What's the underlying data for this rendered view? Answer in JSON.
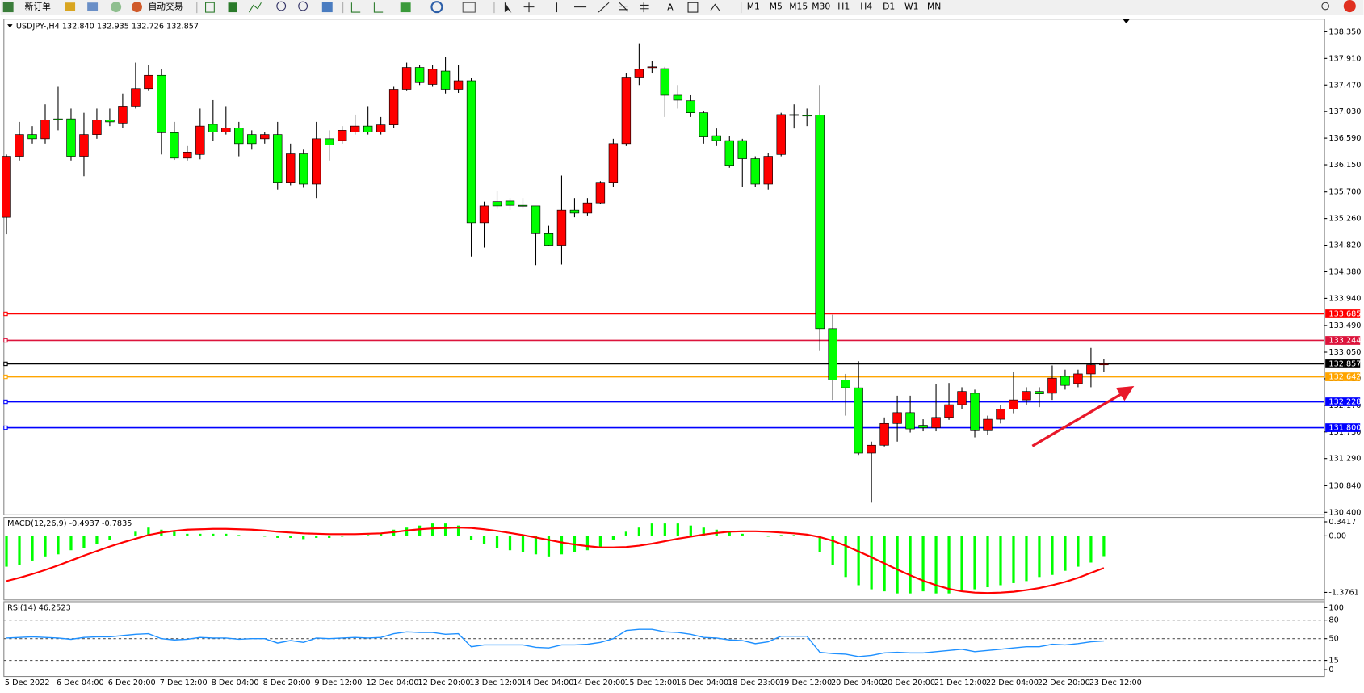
{
  "toolbar": {
    "new_order": "新订单",
    "auto_trading": "自动交易",
    "text_tool": "A",
    "timeframes": [
      "M1",
      "M5",
      "M15",
      "M30",
      "H1",
      "H4",
      "D1",
      "W1",
      "MN"
    ]
  },
  "chart_data": [
    {
      "type": "candlestick",
      "title": "USDJPY-,H4  132.840 132.935 132.726 132.857",
      "categories": [
        "5 Dec 2022",
        null,
        null,
        null,
        "6 Dec 04:00",
        null,
        null,
        null,
        "6 Dec 20:00",
        null,
        null,
        null,
        "7 Dec 12:00",
        null,
        null,
        null,
        "8 Dec 04:00",
        null,
        null,
        null,
        "8 Dec 20:00",
        null,
        null,
        null,
        "9 Dec 12:00",
        null,
        null,
        null,
        "12 Dec 04:00",
        null,
        null,
        null,
        "12 Dec 20:00",
        null,
        null,
        null,
        "13 Dec 12:00",
        null,
        null,
        null,
        "14 Dec 04:00",
        null,
        null,
        null,
        "14 Dec 20:00",
        null,
        null,
        null,
        "15 Dec 12:00",
        null,
        null,
        null,
        "16 Dec 04:00",
        null,
        null,
        null,
        "18 Dec 23:00",
        null,
        null,
        null,
        "19 Dec 12:00",
        null,
        null,
        null,
        "20 Dec 04:00",
        null,
        null,
        null,
        "20 Dec 20:00",
        null,
        null,
        null,
        "21 Dec 12:00",
        null,
        null,
        null,
        "22 Dec 04:00",
        null,
        null,
        null,
        "22 Dec 20:00",
        null,
        null,
        null,
        "23 Dec 12:00",
        null
      ],
      "open": [
        135.28,
        136.29,
        136.65,
        136.58,
        136.91,
        136.91,
        136.29,
        136.65,
        136.89,
        136.84,
        137.12,
        137.41,
        137.63,
        136.68,
        136.26,
        136.32,
        136.82,
        136.69,
        136.76,
        136.65,
        136.58,
        136.65,
        135.86,
        136.33,
        135.83,
        136.58,
        136.55,
        136.69,
        136.79,
        136.69,
        136.81,
        137.4,
        137.76,
        137.48,
        137.7,
        137.4,
        137.54,
        135.19,
        135.54,
        135.55,
        135.48,
        135.47,
        135.01,
        134.82,
        135.4,
        135.35,
        135.52,
        135.86,
        136.5,
        137.6,
        137.77,
        137.74,
        137.3,
        137.21,
        137.01,
        136.63,
        136.55,
        136.55,
        136.25,
        135.83,
        136.32,
        136.98,
        136.97,
        136.97,
        133.44,
        132.59,
        132.46,
        131.38,
        131.51,
        131.87,
        132.05,
        131.84,
        131.8,
        131.97,
        132.18,
        132.37,
        131.75,
        131.94,
        132.11,
        132.26,
        132.4,
        132.37,
        132.65,
        132.53,
        132.69,
        132.84
      ],
      "high": [
        136.32,
        136.86,
        136.79,
        137.15,
        137.44,
        137.08,
        137.01,
        137.08,
        137.08,
        137.33,
        137.84,
        137.8,
        137.73,
        136.86,
        136.46,
        137.08,
        137.22,
        137.12,
        136.86,
        136.72,
        136.69,
        136.86,
        136.5,
        136.4,
        136.86,
        136.72,
        136.79,
        136.98,
        137.12,
        136.94,
        137.44,
        137.84,
        137.8,
        137.8,
        137.94,
        137.8,
        137.58,
        135.54,
        135.71,
        135.6,
        135.6,
        135.47,
        135.14,
        135.97,
        135.6,
        135.6,
        135.88,
        136.58,
        137.66,
        138.16,
        137.87,
        137.77,
        137.47,
        137.3,
        137.04,
        136.75,
        136.62,
        136.58,
        136.29,
        136.35,
        137.01,
        137.15,
        137.08,
        137.47,
        133.67,
        132.69,
        132.9,
        131.57,
        131.97,
        132.33,
        132.33,
        131.94,
        132.52,
        132.54,
        132.47,
        132.43,
        132.0,
        132.18,
        132.72,
        132.47,
        132.47,
        132.83,
        132.76,
        132.76,
        133.12,
        132.935
      ],
      "low": [
        135.0,
        136.22,
        136.5,
        136.5,
        136.72,
        136.22,
        135.96,
        136.58,
        136.79,
        136.76,
        137.08,
        137.37,
        136.32,
        136.23,
        136.22,
        136.24,
        136.55,
        136.65,
        136.29,
        136.4,
        136.5,
        135.74,
        135.81,
        135.77,
        135.6,
        136.22,
        136.5,
        136.65,
        136.65,
        136.65,
        136.76,
        137.37,
        137.47,
        137.44,
        137.33,
        137.34,
        134.63,
        134.78,
        135.42,
        135.4,
        135.42,
        134.49,
        134.81,
        134.5,
        135.28,
        135.31,
        135.5,
        135.78,
        136.46,
        137.47,
        137.66,
        136.94,
        137.08,
        136.94,
        136.5,
        136.46,
        136.1,
        135.78,
        135.78,
        135.74,
        136.29,
        136.75,
        136.79,
        133.08,
        132.26,
        132.0,
        131.35,
        130.56,
        131.49,
        131.57,
        131.72,
        131.74,
        131.74,
        131.93,
        132.11,
        131.64,
        131.68,
        131.87,
        132.04,
        132.18,
        132.14,
        132.26,
        132.43,
        132.47,
        132.47,
        132.726
      ],
      "close": [
        136.29,
        136.65,
        136.58,
        136.89,
        136.9,
        136.29,
        136.65,
        136.89,
        136.86,
        137.12,
        137.41,
        137.63,
        136.68,
        136.26,
        136.36,
        136.79,
        136.69,
        136.76,
        136.5,
        136.5,
        136.65,
        135.86,
        136.33,
        135.83,
        136.58,
        136.48,
        136.72,
        136.79,
        136.69,
        136.81,
        137.4,
        137.76,
        137.51,
        137.73,
        137.4,
        137.54,
        135.19,
        135.47,
        135.47,
        135.48,
        135.47,
        135.01,
        134.82,
        135.4,
        135.35,
        135.52,
        135.86,
        136.5,
        137.6,
        137.73,
        137.77,
        137.3,
        137.22,
        137.01,
        136.61,
        136.55,
        136.14,
        136.25,
        135.83,
        136.29,
        136.98,
        136.97,
        136.96,
        133.44,
        132.59,
        132.46,
        131.38,
        131.51,
        131.87,
        132.05,
        131.78,
        131.8,
        131.97,
        132.18,
        132.4,
        131.75,
        131.94,
        132.11,
        132.26,
        132.4,
        132.36,
        132.62,
        132.5,
        132.69,
        132.84,
        132.857
      ],
      "up_color": "#ff0000",
      "down_color": "#00ff00",
      "ylim": [
        130.36,
        138.56
      ],
      "yticks": [
        {
          "value": 138.35,
          "label": "138.350"
        },
        {
          "value": 137.91,
          "label": "137.910"
        },
        {
          "value": 137.47,
          "label": "137.470"
        },
        {
          "value": 137.03,
          "label": "137.030"
        },
        {
          "value": 136.59,
          "label": "136.590"
        },
        {
          "value": 136.15,
          "label": "136.150"
        },
        {
          "value": 135.7,
          "label": "135.700"
        },
        {
          "value": 135.26,
          "label": "135.260"
        },
        {
          "value": 134.82,
          "label": "134.820"
        },
        {
          "value": 134.38,
          "label": "134.380"
        },
        {
          "value": 133.94,
          "label": "133.940"
        },
        {
          "value": 133.49,
          "label": "133.490"
        },
        {
          "value": 133.05,
          "label": "133.050"
        },
        {
          "value": 132.61,
          "label": "132.610"
        },
        {
          "value": 132.17,
          "label": "132.170"
        },
        {
          "value": 131.73,
          "label": "131.730"
        },
        {
          "value": 131.29,
          "label": "131.290"
        },
        {
          "value": 130.84,
          "label": "130.840"
        },
        {
          "value": 130.4,
          "label": "130.400"
        }
      ],
      "price_lines": [
        {
          "value": 133.685,
          "label": "133.685",
          "color": "#ff0000"
        },
        {
          "value": 133.244,
          "label": "133.244",
          "color": "#dc143c"
        },
        {
          "value": 132.857,
          "label": "132.857",
          "color": "#000000"
        },
        {
          "value": 132.642,
          "label": "132.642",
          "color": "#ffa500"
        },
        {
          "value": 132.228,
          "label": "132.228",
          "color": "#0000ff"
        },
        {
          "value": 131.8,
          "label": "131.800",
          "color": "#0000ff"
        }
      ]
    },
    {
      "type": "macd",
      "title": "MACD(12,26,9) -0.4937 -0.7835",
      "histogram": {
        "color": "#00ff00",
        "values": [
          -0.75,
          -0.7,
          -0.6,
          -0.5,
          -0.45,
          -0.35,
          -0.3,
          -0.2,
          -0.1,
          0.0,
          0.1,
          0.2,
          0.15,
          0.1,
          0.05,
          0.05,
          0.05,
          0.05,
          0.02,
          0.0,
          -0.02,
          -0.05,
          -0.05,
          -0.08,
          -0.05,
          -0.05,
          -0.02,
          0.0,
          0.02,
          0.05,
          0.15,
          0.2,
          0.25,
          0.3,
          0.3,
          0.25,
          -0.1,
          -0.2,
          -0.3,
          -0.35,
          -0.4,
          -0.45,
          -0.5,
          -0.45,
          -0.4,
          -0.35,
          -0.3,
          -0.1,
          0.1,
          0.2,
          0.3,
          0.3,
          0.3,
          0.25,
          0.2,
          0.15,
          0.1,
          0.05,
          0.0,
          -0.02,
          0.02,
          0.02,
          0.0,
          -0.4,
          -0.7,
          -1.0,
          -1.2,
          -1.3,
          -1.35,
          -1.4,
          -1.4,
          -1.35,
          -1.4,
          -1.4,
          -1.35,
          -1.3,
          -1.25,
          -1.2,
          -1.15,
          -1.1,
          -1.0,
          -0.95,
          -0.85,
          -0.75,
          -0.65,
          -0.4937
        ]
      },
      "signal": {
        "color": "#ff0000",
        "values": [
          -1.1,
          -1.02,
          -0.93,
          -0.83,
          -0.72,
          -0.6,
          -0.48,
          -0.37,
          -0.26,
          -0.16,
          -0.07,
          0.02,
          0.08,
          0.12,
          0.15,
          0.16,
          0.17,
          0.17,
          0.16,
          0.15,
          0.13,
          0.1,
          0.08,
          0.06,
          0.05,
          0.04,
          0.04,
          0.04,
          0.05,
          0.06,
          0.09,
          0.13,
          0.16,
          0.18,
          0.19,
          0.2,
          0.19,
          0.16,
          0.12,
          0.07,
          0.02,
          -0.04,
          -0.1,
          -0.16,
          -0.21,
          -0.25,
          -0.28,
          -0.28,
          -0.27,
          -0.24,
          -0.19,
          -0.13,
          -0.07,
          -0.02,
          0.03,
          0.07,
          0.1,
          0.11,
          0.11,
          0.1,
          0.08,
          0.06,
          0.03,
          -0.03,
          -0.12,
          -0.24,
          -0.38,
          -0.52,
          -0.67,
          -0.82,
          -0.96,
          -1.09,
          -1.2,
          -1.29,
          -1.35,
          -1.38,
          -1.39,
          -1.38,
          -1.36,
          -1.32,
          -1.27,
          -1.2,
          -1.12,
          -1.02,
          -0.9,
          -0.7835
        ]
      },
      "ylim": [
        -1.56,
        0.449
      ],
      "yticks": [
        0.3417,
        {
          "value": 0,
          "label": "0.00"
        },
        -1.3761
      ]
    },
    {
      "type": "line",
      "title": "RSI(14) 46.2523",
      "color": "#1e90ff",
      "values": [
        51,
        52,
        53,
        52,
        51,
        49,
        52,
        53,
        53,
        55,
        57,
        58,
        50,
        48,
        49,
        52,
        51,
        51,
        49,
        50,
        50,
        43,
        47,
        44,
        51,
        50,
        51,
        52,
        51,
        52,
        58,
        61,
        60,
        60,
        57,
        58,
        37,
        40,
        40,
        40,
        40,
        36,
        35,
        40,
        40,
        41,
        44,
        50,
        63,
        65,
        65,
        61,
        60,
        57,
        52,
        51,
        48,
        47,
        42,
        45,
        54,
        54,
        54,
        28,
        26,
        25,
        21,
        23,
        27,
        28,
        27,
        27,
        29,
        31,
        33,
        29,
        31,
        33,
        35,
        37,
        37,
        41,
        40,
        42,
        45,
        46.2523
      ],
      "ylim": [
        -11,
        109.6
      ],
      "yticks": [
        100,
        80,
        50,
        15,
        0
      ],
      "levels": [
        80,
        50,
        15
      ]
    }
  ]
}
